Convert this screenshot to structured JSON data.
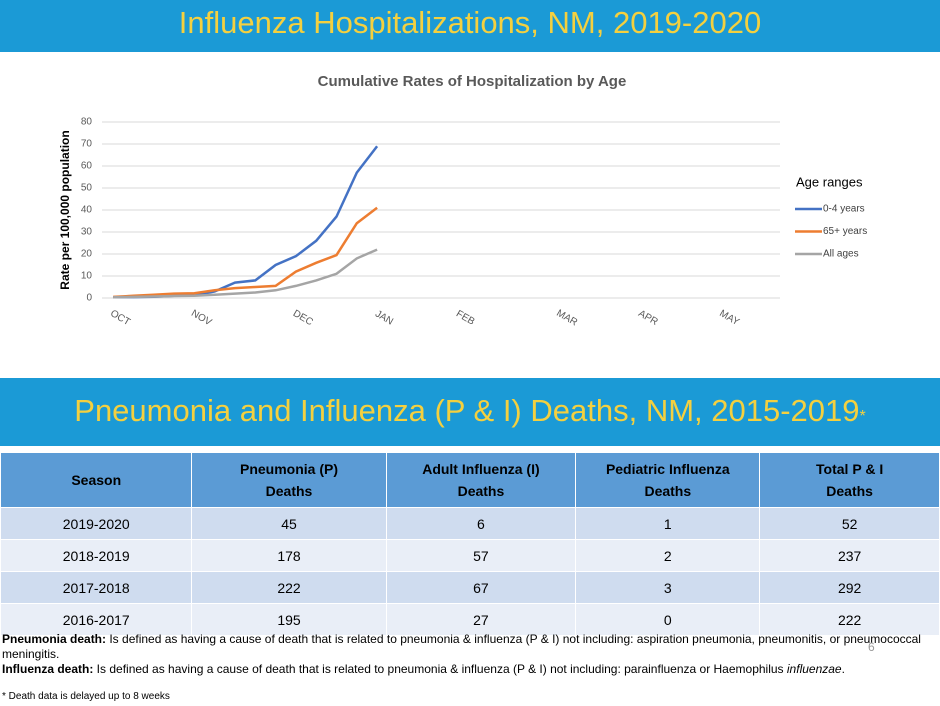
{
  "header": {
    "title": "Influenza Hospitalizations, NM, 2019-2020"
  },
  "chart_data": {
    "type": "line",
    "title": "Cumulative Rates of Hospitalization by Age",
    "y_label": "Rate per 100,000 population",
    "legend_title": "Age ranges",
    "legend": "right",
    "categories": [
      "OCT",
      null,
      null,
      null,
      "NOV",
      null,
      null,
      null,
      null,
      "DEC",
      null,
      null,
      null,
      "JAN",
      null,
      null,
      null,
      "FEB",
      null,
      null,
      null,
      null,
      "MAR",
      null,
      null,
      null,
      "APR",
      null,
      null,
      null,
      "MAY",
      null,
      null
    ],
    "series": [
      {
        "name": "0-4 years",
        "color": "#4472c4",
        "values": [
          0.3,
          0.4,
          0.6,
          1,
          1.2,
          3,
          7,
          8,
          15,
          19,
          26,
          37,
          57,
          69,
          null,
          null,
          null,
          null,
          null,
          null,
          null,
          null,
          null,
          null,
          null,
          null,
          null,
          null,
          null,
          null,
          null,
          null,
          null
        ]
      },
      {
        "name": "65+ years",
        "color": "#ed7d31",
        "values": [
          0.5,
          1,
          1.5,
          2,
          2.2,
          3.5,
          4.5,
          5,
          5.5,
          12,
          16,
          19.5,
          34,
          41,
          null,
          null,
          null,
          null,
          null,
          null,
          null,
          null,
          null,
          null,
          null,
          null,
          null,
          null,
          null,
          null,
          null,
          null,
          null
        ]
      },
      {
        "name": "All ages",
        "color": "#a5a5a5",
        "values": [
          0.3,
          0.5,
          0.7,
          0.9,
          1,
          1.5,
          2,
          2.5,
          3.5,
          5.5,
          8,
          11,
          18,
          22,
          null,
          null,
          null,
          null,
          null,
          null,
          null,
          null,
          null,
          null,
          null,
          null,
          null,
          null,
          null,
          null,
          null,
          null,
          null
        ]
      }
    ],
    "ylim": [
      0,
      80
    ],
    "yticks": [
      0,
      10,
      20,
      30,
      40,
      50,
      60,
      70,
      80
    ],
    "grid": true
  },
  "section": {
    "title": "Pneumonia and Influenza (P & I) Deaths, NM, 2015-2019",
    "mark": "*"
  },
  "table": {
    "columns": [
      [
        "Season"
      ],
      [
        "Pneumonia (P)",
        "Deaths"
      ],
      [
        "Adult Influenza (I)",
        "Deaths"
      ],
      [
        "Pediatric Influenza",
        "Deaths"
      ],
      [
        "Total P & I",
        "Deaths"
      ]
    ],
    "rows": [
      [
        "2019-2020",
        "45",
        "6",
        "1",
        "52"
      ],
      [
        "2018-2019",
        "178",
        "57",
        "2",
        "237"
      ],
      [
        "2017-2018",
        "222",
        "67",
        "3",
        "292"
      ],
      [
        "2016-2017",
        "195",
        "27",
        "0",
        "222"
      ]
    ]
  },
  "notes": [
    {
      "term": "Pneumonia death:",
      "text": " Is defined as having a cause of death that is related to pneumonia & influenza (P & I) not including: aspiration pneumonia, pneumonitis,  or pneumococcal meningitis."
    },
    {
      "term": "Influenza death:",
      "text": " Is defined as having a cause of death that is related to pneumonia & influenza (P & I) not including: parainfluenza or Haemophilus ",
      "italic": "influenzae",
      "end": "."
    }
  ],
  "page_number": "6",
  "footnote": "* Death data is delayed up to 8 weeks"
}
